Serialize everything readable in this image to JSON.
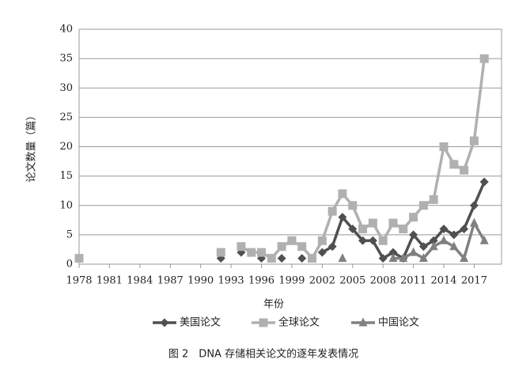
{
  "chart_data": {
    "type": "line",
    "caption": "图 2　DNA 存储相关论文的逐年发表情况",
    "x_label": "年份",
    "y_label": "论文数量（篇）",
    "x": [
      1978,
      1979,
      1980,
      1981,
      1982,
      1983,
      1984,
      1985,
      1986,
      1987,
      1988,
      1989,
      1990,
      1991,
      1992,
      1993,
      1994,
      1995,
      1996,
      1997,
      1998,
      1999,
      2000,
      2001,
      2002,
      2003,
      2004,
      2005,
      2006,
      2007,
      2008,
      2009,
      2010,
      2011,
      2012,
      2013,
      2014,
      2015,
      2016,
      2017,
      2018
    ],
    "series": [
      {
        "name": "美国论文",
        "color": "#505050",
        "marker": "diamond",
        "values": [
          null,
          null,
          null,
          null,
          null,
          null,
          null,
          null,
          null,
          null,
          null,
          null,
          null,
          null,
          1,
          null,
          2,
          null,
          1,
          null,
          1,
          null,
          1,
          null,
          2,
          3,
          8,
          6,
          4,
          4,
          1,
          2,
          1,
          5,
          3,
          4,
          6,
          5,
          6,
          10,
          14
        ]
      },
      {
        "name": "全球论文",
        "color": "#b0b0b0",
        "marker": "square",
        "values": [
          1,
          null,
          null,
          null,
          null,
          null,
          null,
          null,
          null,
          null,
          null,
          null,
          null,
          null,
          2,
          null,
          3,
          2,
          2,
          1,
          3,
          4,
          3,
          1,
          4,
          9,
          12,
          10,
          6,
          7,
          4,
          7,
          6,
          8,
          10,
          11,
          20,
          17,
          16,
          21,
          35
        ]
      },
      {
        "name": "中国论文",
        "color": "#808080",
        "marker": "triangle",
        "values": [
          null,
          null,
          null,
          null,
          null,
          null,
          null,
          null,
          null,
          null,
          null,
          null,
          null,
          null,
          null,
          null,
          null,
          null,
          null,
          null,
          null,
          null,
          null,
          null,
          null,
          null,
          1,
          null,
          null,
          null,
          null,
          1,
          1,
          2,
          1,
          3,
          4,
          3,
          1,
          7,
          4
        ]
      }
    ],
    "xlim": [
      1978,
      2019.7
    ],
    "xticks": [
      1978,
      1981,
      1984,
      1987,
      1990,
      1993,
      1996,
      1999,
      2002,
      2005,
      2008,
      2011,
      2014,
      2017
    ],
    "ylim": [
      0,
      40
    ],
    "yticks": [
      0,
      5,
      10,
      15,
      20,
      25,
      30,
      35,
      40
    ],
    "grid": true
  }
}
